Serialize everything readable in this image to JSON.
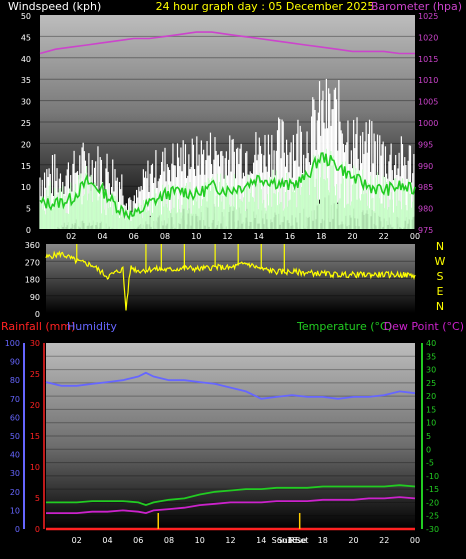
{
  "header": {
    "windspeed_label": "Windspeed (kph)",
    "title": "24 hour graph day : 05 December 2025",
    "barometer_label": "Barometer (hpa)"
  },
  "colors": {
    "background": "#000000",
    "wind_gust": "#ffffff",
    "wind_speed": "#c8ffc8",
    "wind_avg": "#22cc22",
    "barometer": "#cc44cc",
    "direction": "#ffff00",
    "rainfall": "#ff2222",
    "humidity": "#6666ff",
    "temperature": "#22cc22",
    "dew_point": "#cc22cc",
    "sun_marker": "#ffcc00",
    "axis_text": "#ffffff"
  },
  "x_ticks": [
    "02",
    "04",
    "06",
    "08",
    "10",
    "12",
    "14",
    "16",
    "18",
    "20",
    "22",
    "00"
  ],
  "direction_legend": [
    "N",
    "W",
    "S",
    "E",
    "N"
  ],
  "lower_labels": {
    "rainfall": "Rainfall (mm)",
    "humidity": "Humidity",
    "temperature": "Temperature (°C)",
    "dew_point": "Dew Point (°C)",
    "sunrise": "Sun Rise",
    "sunset": "Sun Set"
  },
  "chart_data": [
    {
      "type": "line",
      "title": "24 hour graph day : 05 December 2025",
      "ylabel": "Windspeed (kph)",
      "y2label": "Barometer (hpa)",
      "x_unit": "hour",
      "x_ticks": [
        "02",
        "04",
        "06",
        "08",
        "10",
        "12",
        "14",
        "16",
        "18",
        "20",
        "22",
        "00"
      ],
      "ylim": [
        0,
        50
      ],
      "y_ticks": [
        0,
        5,
        10,
        15,
        20,
        25,
        30,
        35,
        40,
        45,
        50
      ],
      "y2lim": [
        975,
        1025
      ],
      "y2_ticks": [
        975,
        980,
        985,
        990,
        995,
        1000,
        1005,
        1010,
        1015,
        1020,
        1025
      ],
      "series": [
        {
          "name": "gust",
          "axis": "y",
          "x": [
            0,
            1,
            2,
            3,
            4,
            5,
            6,
            7,
            8,
            9,
            10,
            11,
            12,
            13,
            14,
            15,
            16,
            17,
            18,
            19,
            20,
            21,
            22,
            23,
            24
          ],
          "min": [
            0,
            0,
            3,
            2,
            2,
            0,
            0,
            3,
            5,
            5,
            5,
            6,
            6,
            5,
            5,
            5,
            3,
            5,
            8,
            8,
            5,
            5,
            3,
            3,
            3
          ],
          "max": [
            18,
            18,
            18,
            22,
            20,
            18,
            8,
            18,
            20,
            22,
            22,
            24,
            22,
            24,
            24,
            26,
            28,
            28,
            36,
            36,
            28,
            26,
            24,
            22,
            22
          ]
        },
        {
          "name": "speed",
          "axis": "y",
          "x": [
            0,
            1,
            2,
            3,
            4,
            5,
            6,
            7,
            8,
            9,
            10,
            11,
            12,
            13,
            14,
            15,
            16,
            17,
            18,
            19,
            20,
            21,
            22,
            23,
            24
          ],
          "min": [
            0,
            0,
            0,
            0,
            0,
            0,
            0,
            0,
            0,
            0,
            0,
            0,
            0,
            0,
            0,
            0,
            0,
            0,
            0,
            0,
            0,
            0,
            0,
            0,
            0
          ],
          "max": [
            10,
            12,
            11,
            15,
            10,
            8,
            5,
            9,
            11,
            12,
            12,
            13,
            13,
            13,
            14,
            14,
            14,
            15,
            20,
            18,
            15,
            14,
            13,
            12,
            12
          ]
        },
        {
          "name": "average",
          "axis": "y",
          "x": [
            0,
            1,
            2,
            3,
            4,
            5,
            6,
            7,
            8,
            9,
            10,
            11,
            12,
            13,
            14,
            15,
            16,
            17,
            18,
            19,
            20,
            21,
            22,
            23,
            24
          ],
          "values": [
            6,
            6,
            7,
            11,
            9,
            5,
            3,
            6,
            8,
            9,
            8,
            10,
            9,
            10,
            12,
            11,
            10,
            12,
            17,
            15,
            12,
            10,
            9,
            10,
            9
          ]
        },
        {
          "name": "barometer",
          "axis": "y2",
          "x": [
            0,
            1,
            2,
            3,
            4,
            5,
            6,
            7,
            8,
            9,
            10,
            11,
            12,
            13,
            14,
            15,
            16,
            17,
            18,
            19,
            20,
            21,
            22,
            23,
            24
          ],
          "values": [
            1016,
            1017,
            1017.5,
            1018,
            1018.5,
            1019,
            1019.5,
            1019.5,
            1020,
            1020.5,
            1021,
            1021,
            1020.5,
            1020,
            1019.5,
            1019,
            1018.5,
            1018,
            1017.5,
            1017,
            1016.5,
            1016.5,
            1016.5,
            1016,
            1016
          ]
        }
      ]
    },
    {
      "type": "line",
      "ylabel": "",
      "ylim": [
        0,
        360
      ],
      "y_ticks": [
        0,
        90,
        180,
        270,
        360
      ],
      "x_ticks": [
        "02",
        "04",
        "06",
        "08",
        "10",
        "12",
        "14",
        "16",
        "18",
        "20",
        "22",
        "00"
      ],
      "series": [
        {
          "name": "direction",
          "x": [
            0,
            1,
            2,
            3,
            4,
            5,
            5.2,
            5.5,
            6,
            7,
            8,
            9,
            10,
            11,
            12,
            13,
            14,
            15,
            16,
            17,
            18,
            19,
            20,
            21,
            22,
            23,
            24
          ],
          "values": [
            290,
            310,
            270,
            250,
            190,
            230,
            20,
            240,
            220,
            230,
            225,
            235,
            230,
            240,
            235,
            260,
            230,
            215,
            215,
            210,
            205,
            200,
            200,
            200,
            200,
            200,
            195
          ],
          "spikes_at": [
            2.0,
            6.5,
            7.5,
            9.0,
            11.0,
            12.5,
            14.0,
            15.5
          ]
        }
      ]
    },
    {
      "type": "line",
      "x_ticks": [
        "02",
        "04",
        "06",
        "08",
        "10",
        "12",
        "14",
        "16",
        "18",
        "20",
        "22",
        "00"
      ],
      "humidity_ylim": [
        0,
        100
      ],
      "humidity_ticks": [
        0,
        10,
        20,
        30,
        40,
        50,
        60,
        70,
        80,
        90,
        100
      ],
      "rainfall_ylim": [
        0,
        30
      ],
      "rainfall_ticks": [
        0,
        5,
        10,
        15,
        20,
        25,
        30
      ],
      "temperature_ylim": [
        -30,
        40
      ],
      "temperature_ticks": [
        -30,
        -25,
        -20,
        -15,
        -10,
        -5,
        0,
        5,
        10,
        15,
        20,
        25,
        30,
        35,
        40
      ],
      "sun_events": [
        {
          "label": "Sun Rise",
          "x": 7.3
        },
        {
          "label": "Sun Set",
          "x": 16.5
        }
      ],
      "series": [
        {
          "name": "Humidity",
          "axis": "humidity",
          "x": [
            0,
            1,
            2,
            3,
            4,
            5,
            6,
            6.5,
            7,
            8,
            9,
            10,
            11,
            12,
            13,
            14,
            15,
            16,
            17,
            18,
            19,
            20,
            21,
            22,
            23,
            24
          ],
          "values": [
            79,
            77,
            77,
            78,
            79,
            80,
            82,
            84,
            82,
            80,
            80,
            79,
            78,
            76,
            74,
            70,
            71,
            72,
            71,
            71,
            70,
            71,
            71,
            72,
            74,
            73
          ]
        },
        {
          "name": "Temperature (°C)",
          "axis": "temperature",
          "x": [
            0,
            1,
            2,
            3,
            4,
            5,
            6,
            6.5,
            7,
            8,
            9,
            10,
            11,
            12,
            13,
            14,
            15,
            16,
            17,
            18,
            19,
            20,
            21,
            22,
            23,
            24
          ],
          "values": [
            -20,
            -20,
            -20,
            -19.5,
            -19.5,
            -19.5,
            -20,
            -21,
            -20,
            -19,
            -18.5,
            -17,
            -16,
            -15.5,
            -15,
            -15,
            -14.5,
            -14.5,
            -14.5,
            -14,
            -14,
            -14,
            -14,
            -14,
            -13.5,
            -14
          ],
          "label": "Temperature"
        },
        {
          "name": "Dew Point (°C)",
          "axis": "temperature",
          "x": [
            0,
            1,
            2,
            3,
            4,
            5,
            6,
            6.5,
            7,
            8,
            9,
            10,
            11,
            12,
            13,
            14,
            15,
            16,
            17,
            18,
            19,
            20,
            21,
            22,
            23,
            24
          ],
          "values": [
            -24,
            -24,
            -24,
            -23.5,
            -23.5,
            -23,
            -23.5,
            -24,
            -23,
            -22.5,
            -22,
            -21,
            -20.5,
            -20,
            -20,
            -20,
            -19.5,
            -19.5,
            -19.5,
            -19,
            -19,
            -19,
            -18.5,
            -18.5,
            -18,
            -18.5
          ]
        },
        {
          "name": "Rainfall (mm)",
          "axis": "rainfall",
          "x": [
            0,
            24
          ],
          "values": [
            0,
            0
          ]
        }
      ]
    }
  ]
}
